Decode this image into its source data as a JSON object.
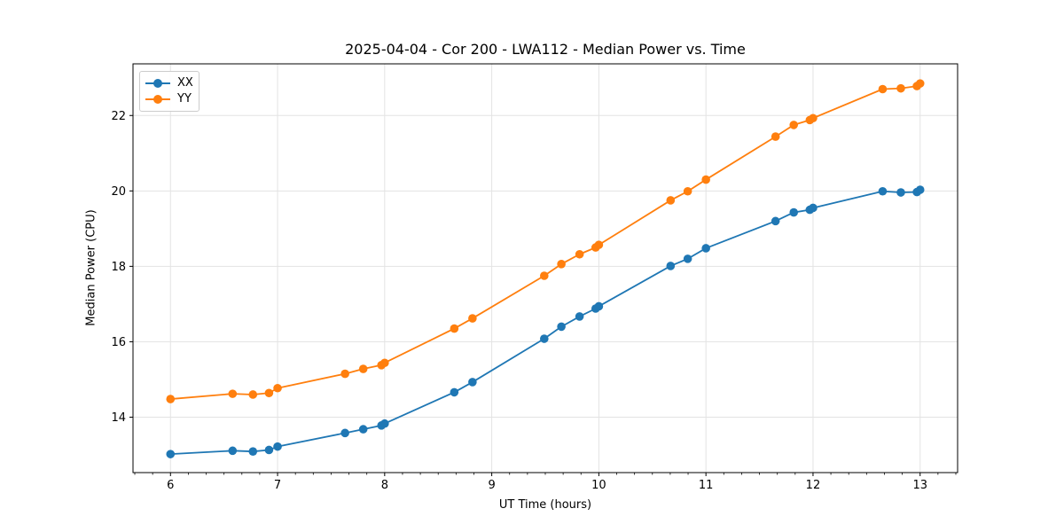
{
  "figure": {
    "title": "2025-04-04 - Cor 200 - LWA112 - Median Power vs. Time"
  },
  "chart_data": {
    "type": "line",
    "title": "2025-04-04 - Cor 200 - LWA112 - Median Power vs. Time",
    "xlabel": "UT Time (hours)",
    "ylabel": "Median Power (CPU)",
    "x": [
      6.0,
      6.58,
      6.77,
      6.92,
      7.0,
      7.63,
      7.8,
      7.97,
      8.0,
      8.65,
      8.82,
      9.49,
      9.65,
      9.82,
      9.97,
      10.0,
      10.67,
      10.83,
      11.0,
      11.65,
      11.82,
      11.97,
      12.0,
      12.65,
      12.82,
      12.97,
      13.0
    ],
    "series": [
      {
        "name": "XX",
        "color": "#1f77b4",
        "values": [
          13.02,
          13.11,
          13.09,
          13.13,
          13.22,
          13.58,
          13.68,
          13.78,
          13.83,
          14.66,
          14.93,
          16.08,
          16.4,
          16.67,
          16.88,
          16.94,
          18.01,
          18.2,
          18.48,
          19.2,
          19.43,
          19.5,
          19.55,
          19.99,
          19.96,
          19.97,
          20.03
        ]
      },
      {
        "name": "YY",
        "color": "#ff7f0e",
        "values": [
          14.48,
          14.62,
          14.6,
          14.64,
          14.77,
          15.15,
          15.28,
          15.38,
          15.44,
          16.35,
          16.62,
          17.75,
          18.06,
          18.32,
          18.5,
          18.57,
          19.75,
          19.99,
          20.3,
          21.44,
          21.75,
          21.88,
          21.93,
          22.7,
          22.72,
          22.78,
          22.85
        ]
      }
    ],
    "xlim": [
      5.65,
      13.35
    ],
    "ylim": [
      12.53,
      23.37
    ],
    "x_ticks": [
      6,
      7,
      8,
      9,
      10,
      11,
      12,
      13
    ],
    "y_ticks": [
      14,
      16,
      18,
      20,
      22
    ],
    "x_minor_interval_minutes": 10,
    "grid": true,
    "legend_position": "upper-left",
    "colors": {
      "grid": "#e3e3e3",
      "axis": "#000000",
      "text": "#000000",
      "background": "#ffffff"
    }
  }
}
